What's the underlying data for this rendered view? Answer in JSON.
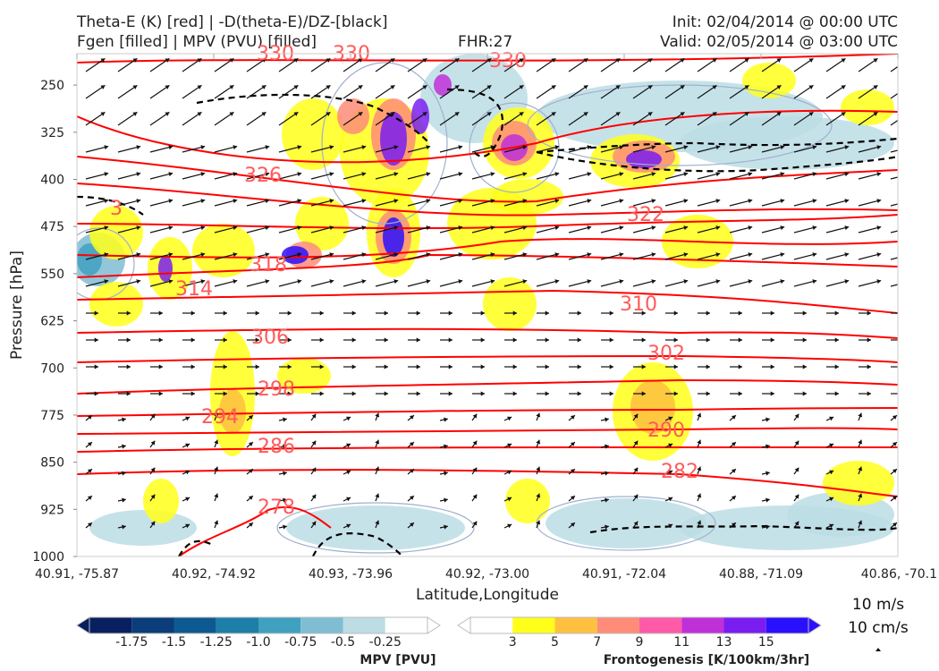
{
  "header": {
    "title_line1": "Theta-E (K) [red] | -D(theta-E)/DZ-[black]",
    "title_line2": "Fgen [filled] | MPV (PVU) [filled]",
    "fhr": "FHR:27",
    "init": "Init: 02/04/2014 @ 00:00 UTC",
    "valid": "Valid: 02/05/2014 @ 03:00 UTC"
  },
  "chart_data": {
    "type": "cross-section",
    "xlabel": "Latitude,Longitude",
    "ylabel": "Pressure [hPa]",
    "x_ticks": [
      "40.91, -75.87",
      "40.92, -74.92",
      "40.93, -73.96",
      "40.92, -73.00",
      "40.91, -72.04",
      "40.88, -71.09",
      "40.86, -70.1"
    ],
    "y_ticks": [
      250,
      325,
      400,
      475,
      550,
      625,
      700,
      775,
      850,
      925,
      1000
    ],
    "ylim": [
      1000,
      200
    ],
    "y_inverted": true,
    "theta_e_contour_labels": [
      "330",
      "330",
      "330",
      "326",
      "322",
      "318",
      "314",
      "310",
      "306",
      "302",
      "298",
      "294",
      "290",
      "286",
      "282",
      "278",
      "3"
    ],
    "theta_e_color": "#ff0000",
    "dthetae_dz_color": "#000000",
    "mpv_colorbar": {
      "title": "MPV [PVU]",
      "ticks": [
        "-1.75",
        "-1.5",
        "-1.25",
        "-1.0",
        "-0.75",
        "-0.5",
        "-0.25"
      ],
      "colors": [
        "#08205f",
        "#0a3d7a",
        "#0d5a90",
        "#1d7ea8",
        "#3fa0c0",
        "#7fbdd2",
        "#bcdde5",
        "#ffffff"
      ]
    },
    "fgen_colorbar": {
      "title": "Frontogenesis [K/100km/3hr]",
      "ticks": [
        "3",
        "5",
        "7",
        "9",
        "11",
        "13",
        "15"
      ],
      "colors": [
        "#ffffff",
        "#ffff1a",
        "#ffc040",
        "#ff8c78",
        "#ff5aa8",
        "#c030d8",
        "#7a1ef0",
        "#2a10ff"
      ]
    },
    "vector_reference": {
      "line1": "10 m/s",
      "line2": "10 cm/s"
    }
  }
}
